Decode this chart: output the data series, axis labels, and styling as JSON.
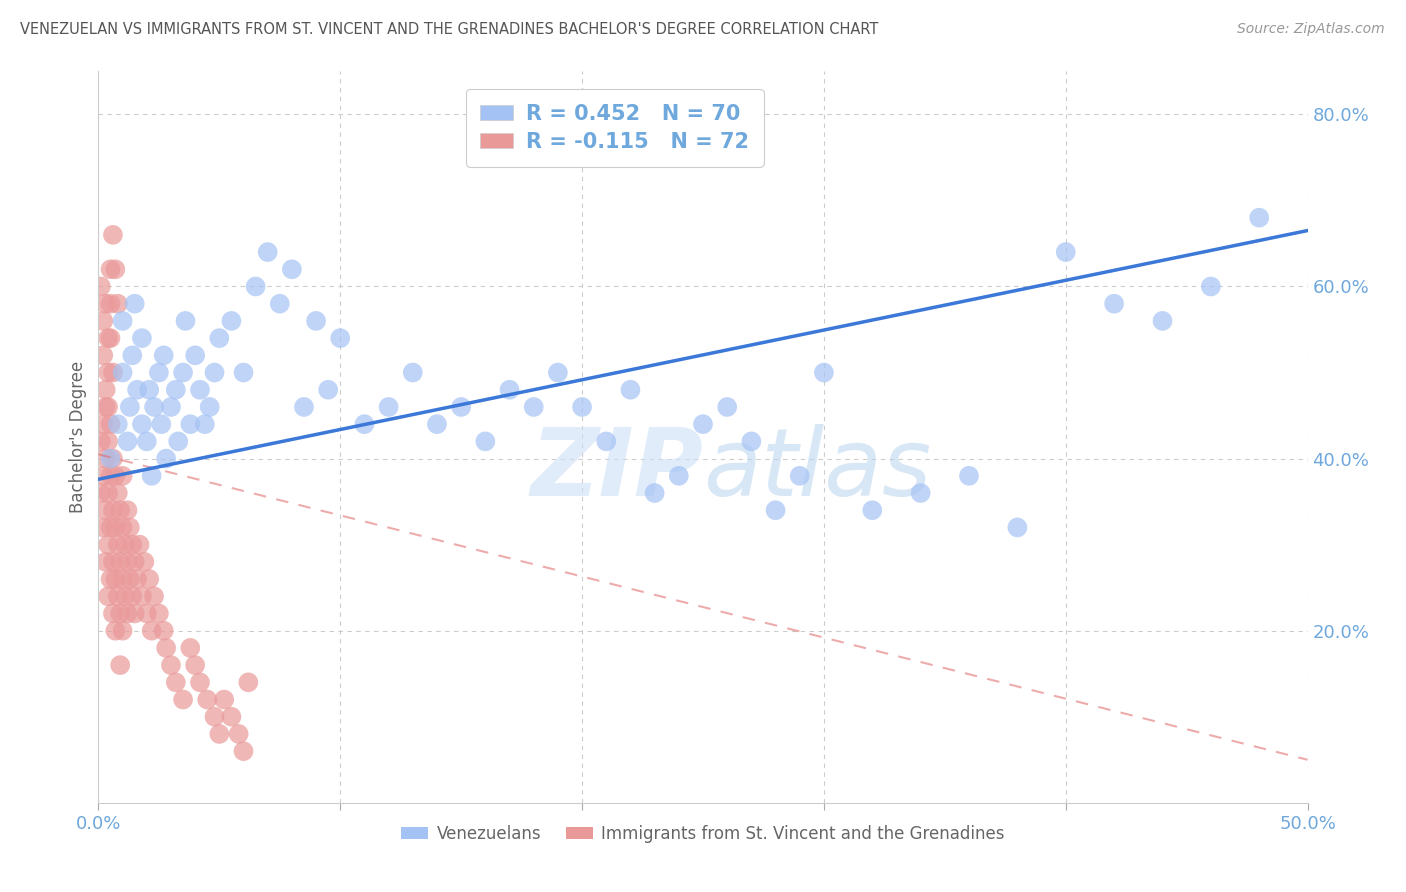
{
  "title": "VENEZUELAN VS IMMIGRANTS FROM ST. VINCENT AND THE GRENADINES BACHELOR'S DEGREE CORRELATION CHART",
  "source": "Source: ZipAtlas.com",
  "ylabel": "Bachelor's Degree",
  "xlim": [
    0.0,
    0.5
  ],
  "ylim": [
    0.0,
    0.85
  ],
  "xticks": [
    0.0,
    0.1,
    0.2,
    0.3,
    0.4,
    0.5
  ],
  "xticklabels": [
    "0.0%",
    "",
    "",
    "",
    "",
    "50.0%"
  ],
  "yticks": [
    0.2,
    0.4,
    0.6,
    0.8
  ],
  "yticklabels": [
    "20.0%",
    "40.0%",
    "60.0%",
    "80.0%"
  ],
  "watermark": "ZIPatlas",
  "legend_label1": "Venezuelans",
  "legend_label2": "Immigrants from St. Vincent and the Grenadines",
  "color_blue": "#a4c2f4",
  "color_pink": "#ea9999",
  "line_color_blue": "#3c78d8",
  "line_color_pink_dashed": "#e06666",
  "title_color": "#555555",
  "axis_color": "#6fa8dc",
  "grid_color": "#cccccc",
  "blue_trendline_x": [
    0.0,
    0.5
  ],
  "blue_trendline_y": [
    0.376,
    0.665
  ],
  "pink_trendline_x": [
    0.0,
    0.5
  ],
  "pink_trendline_y": [
    0.405,
    0.05
  ],
  "venezuelan_x": [
    0.005,
    0.008,
    0.01,
    0.01,
    0.012,
    0.013,
    0.014,
    0.015,
    0.016,
    0.018,
    0.018,
    0.02,
    0.021,
    0.022,
    0.023,
    0.025,
    0.026,
    0.027,
    0.028,
    0.03,
    0.032,
    0.033,
    0.035,
    0.036,
    0.038,
    0.04,
    0.042,
    0.044,
    0.046,
    0.048,
    0.05,
    0.055,
    0.06,
    0.065,
    0.07,
    0.075,
    0.08,
    0.085,
    0.09,
    0.095,
    0.1,
    0.11,
    0.12,
    0.13,
    0.14,
    0.15,
    0.16,
    0.17,
    0.18,
    0.19,
    0.2,
    0.21,
    0.22,
    0.23,
    0.24,
    0.25,
    0.26,
    0.27,
    0.28,
    0.29,
    0.3,
    0.32,
    0.34,
    0.36,
    0.38,
    0.4,
    0.42,
    0.44,
    0.46,
    0.48
  ],
  "venezuelan_y": [
    0.4,
    0.44,
    0.5,
    0.56,
    0.42,
    0.46,
    0.52,
    0.58,
    0.48,
    0.44,
    0.54,
    0.42,
    0.48,
    0.38,
    0.46,
    0.5,
    0.44,
    0.52,
    0.4,
    0.46,
    0.48,
    0.42,
    0.5,
    0.56,
    0.44,
    0.52,
    0.48,
    0.44,
    0.46,
    0.5,
    0.54,
    0.56,
    0.5,
    0.6,
    0.64,
    0.58,
    0.62,
    0.46,
    0.56,
    0.48,
    0.54,
    0.44,
    0.46,
    0.5,
    0.44,
    0.46,
    0.42,
    0.48,
    0.46,
    0.5,
    0.46,
    0.42,
    0.48,
    0.36,
    0.38,
    0.44,
    0.46,
    0.42,
    0.34,
    0.38,
    0.5,
    0.34,
    0.36,
    0.38,
    0.32,
    0.64,
    0.58,
    0.56,
    0.6,
    0.68
  ],
  "svg_x": [
    0.001,
    0.001,
    0.002,
    0.002,
    0.002,
    0.003,
    0.003,
    0.003,
    0.003,
    0.004,
    0.004,
    0.004,
    0.004,
    0.005,
    0.005,
    0.005,
    0.005,
    0.006,
    0.006,
    0.006,
    0.006,
    0.007,
    0.007,
    0.007,
    0.007,
    0.008,
    0.008,
    0.008,
    0.009,
    0.009,
    0.009,
    0.009,
    0.01,
    0.01,
    0.01,
    0.01,
    0.011,
    0.011,
    0.012,
    0.012,
    0.012,
    0.013,
    0.013,
    0.014,
    0.014,
    0.015,
    0.015,
    0.016,
    0.017,
    0.018,
    0.019,
    0.02,
    0.021,
    0.022,
    0.023,
    0.025,
    0.027,
    0.028,
    0.03,
    0.032,
    0.035,
    0.038,
    0.04,
    0.042,
    0.045,
    0.048,
    0.05,
    0.052,
    0.055,
    0.058,
    0.06,
    0.062
  ],
  "svg_y": [
    0.42,
    0.36,
    0.44,
    0.38,
    0.32,
    0.46,
    0.4,
    0.34,
    0.28,
    0.42,
    0.36,
    0.3,
    0.24,
    0.44,
    0.38,
    0.32,
    0.26,
    0.4,
    0.34,
    0.28,
    0.22,
    0.38,
    0.32,
    0.26,
    0.2,
    0.36,
    0.3,
    0.24,
    0.34,
    0.28,
    0.22,
    0.16,
    0.38,
    0.32,
    0.26,
    0.2,
    0.3,
    0.24,
    0.34,
    0.28,
    0.22,
    0.32,
    0.26,
    0.3,
    0.24,
    0.28,
    0.22,
    0.26,
    0.3,
    0.24,
    0.28,
    0.22,
    0.26,
    0.2,
    0.24,
    0.22,
    0.2,
    0.18,
    0.16,
    0.14,
    0.12,
    0.18,
    0.16,
    0.14,
    0.12,
    0.1,
    0.08,
    0.12,
    0.1,
    0.08,
    0.06,
    0.14
  ],
  "svg_extra_high_y": [
    0.6,
    0.56,
    0.52,
    0.48,
    0.58,
    0.54,
    0.5,
    0.46,
    0.62,
    0.58,
    0.54,
    0.5,
    0.66,
    0.62,
    0.58
  ]
}
